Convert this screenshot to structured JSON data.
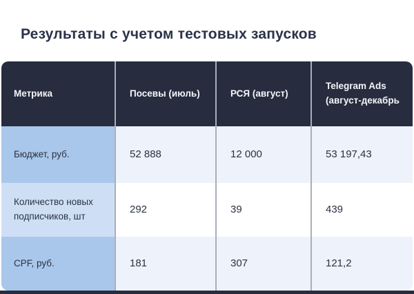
{
  "page": {
    "title": "Результаты с учетом тестовых запусков"
  },
  "table": {
    "columns": [
      "Метрика",
      "Посевы (июль)",
      "РСЯ (август)",
      "Telegram Ads (август-декабрь"
    ],
    "rows": [
      {
        "metric": "Бюджет, руб.",
        "values": [
          "52 888",
          "12 000",
          "53 197,43"
        ]
      },
      {
        "metric": "Количество новых подписчиков, шт",
        "values": [
          "292",
          "39",
          "439"
        ]
      },
      {
        "metric": "CPF, руб.",
        "values": [
          "181",
          "307",
          "121,2"
        ]
      }
    ]
  },
  "colors": {
    "header_bg": "#272D3F",
    "header_text": "#F3F5F9",
    "metric_cell_odd": "#A9C7EA",
    "metric_cell_even": "#CEDFF5",
    "data_cell_odd": "#EDF2FB",
    "data_cell_even": "#FFFFFF",
    "divider": "#AAAEB9",
    "title_text": "#2B3349",
    "body_text": "#2B3142",
    "bottom_strip": "#272D3F"
  }
}
